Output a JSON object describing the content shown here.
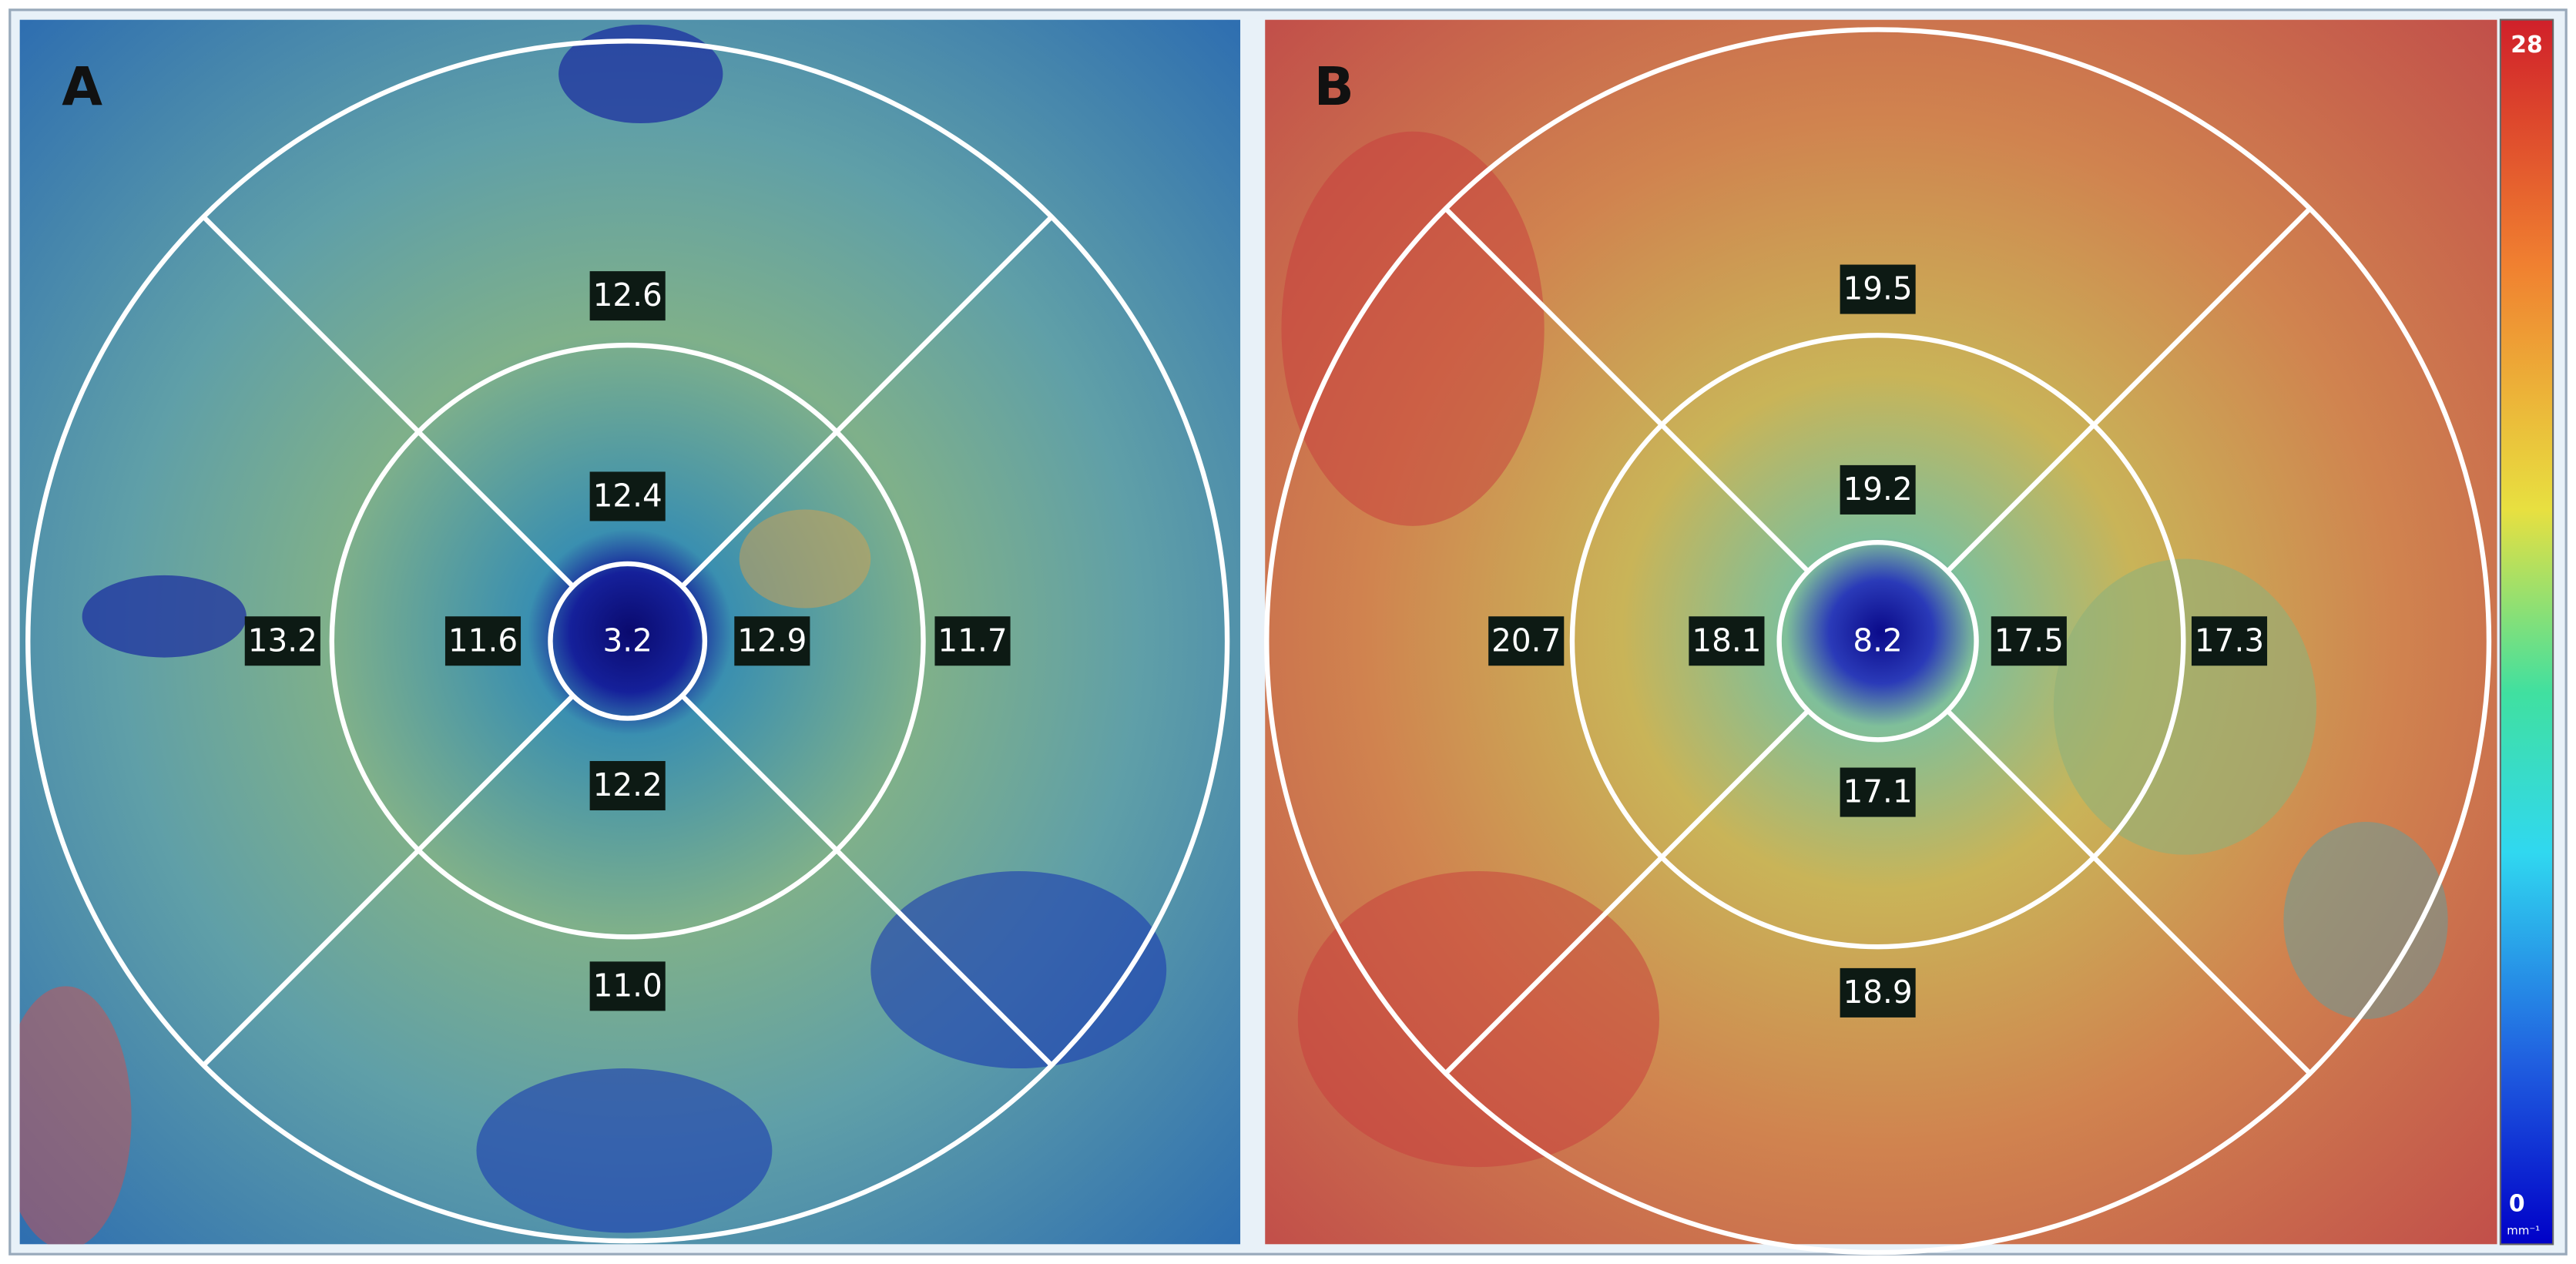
{
  "panels": [
    {
      "label": "A",
      "values": [
        "12.6",
        "12.4",
        "13.2",
        "11.6",
        "3.2",
        "12.9",
        "11.7",
        "12.2",
        "11.0"
      ]
    },
    {
      "label": "B",
      "values": [
        "19.5",
        "19.2",
        "20.7",
        "18.1",
        "8.2",
        "17.5",
        "17.3",
        "17.1",
        "18.9"
      ]
    }
  ],
  "colorbar": {
    "max": "28",
    "min": "0",
    "unit": "mm⁻¹"
  }
}
